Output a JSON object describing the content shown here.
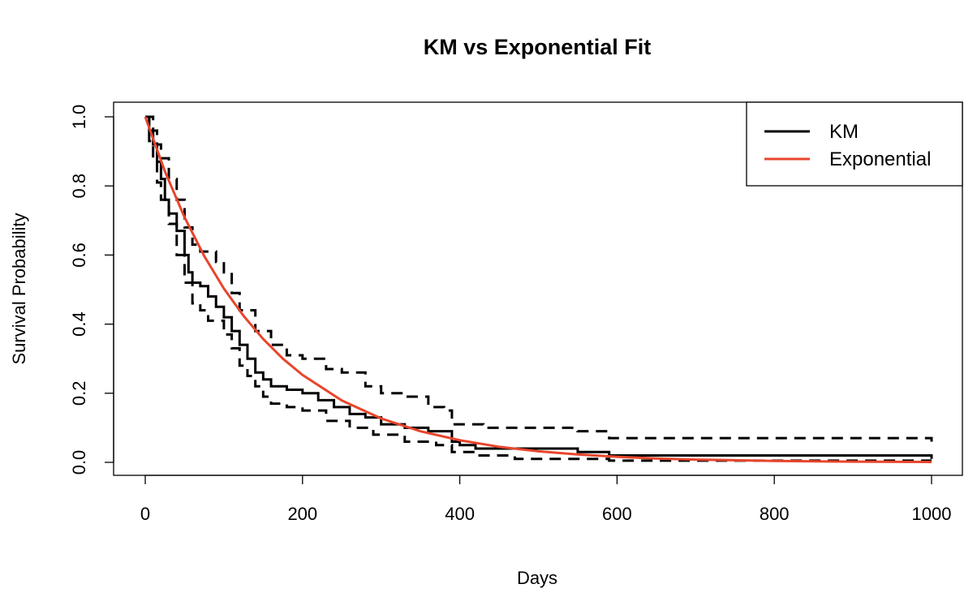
{
  "chart_data": {
    "type": "line",
    "title": "KM vs Exponential Fit",
    "xlabel": "Days",
    "ylabel": "Survival Probability",
    "xlim": [
      0,
      1000
    ],
    "ylim": [
      0,
      1
    ],
    "x_ticks": [
      0,
      200,
      400,
      600,
      800,
      1000
    ],
    "y_ticks": [
      "0.0",
      "0.2",
      "0.4",
      "0.6",
      "0.8",
      "1.0"
    ],
    "grid": false,
    "legend": {
      "position": "top-right",
      "entries": [
        {
          "label": "KM",
          "color": "#000000"
        },
        {
          "label": "Exponential",
          "color": "#e8452c"
        }
      ]
    },
    "series": [
      {
        "name": "KM",
        "role": "estimate",
        "color": "#000000",
        "style": "step-solid",
        "x": [
          0,
          5,
          10,
          15,
          20,
          25,
          30,
          40,
          50,
          55,
          60,
          70,
          80,
          90,
          100,
          110,
          120,
          130,
          140,
          150,
          160,
          180,
          200,
          220,
          240,
          260,
          280,
          300,
          330,
          360,
          390,
          400,
          420,
          460,
          550,
          590,
          700,
          990,
          1000
        ],
        "y": [
          1.0,
          0.96,
          0.92,
          0.87,
          0.82,
          0.76,
          0.72,
          0.67,
          0.6,
          0.55,
          0.52,
          0.51,
          0.48,
          0.45,
          0.42,
          0.38,
          0.34,
          0.3,
          0.26,
          0.24,
          0.22,
          0.21,
          0.2,
          0.18,
          0.16,
          0.14,
          0.13,
          0.11,
          0.1,
          0.09,
          0.06,
          0.05,
          0.04,
          0.04,
          0.03,
          0.02,
          0.02,
          0.02,
          0.01
        ]
      },
      {
        "name": "KM upper CI",
        "role": "upper confidence band",
        "color": "#000000",
        "style": "step-dashed",
        "x": [
          0,
          5,
          10,
          15,
          20,
          30,
          40,
          50,
          60,
          70,
          90,
          100,
          110,
          120,
          140,
          160,
          180,
          200,
          230,
          250,
          280,
          300,
          330,
          360,
          380,
          390,
          400,
          430,
          550,
          590,
          700,
          990,
          1000
        ],
        "y": [
          1.0,
          1.0,
          0.96,
          0.92,
          0.88,
          0.82,
          0.76,
          0.68,
          0.63,
          0.61,
          0.58,
          0.55,
          0.49,
          0.44,
          0.38,
          0.34,
          0.31,
          0.3,
          0.27,
          0.26,
          0.22,
          0.2,
          0.19,
          0.16,
          0.15,
          0.11,
          0.11,
          0.1,
          0.09,
          0.07,
          0.07,
          0.07,
          0.06
        ]
      },
      {
        "name": "KM lower CI",
        "role": "lower confidence band",
        "color": "#000000",
        "style": "step-dashed",
        "x": [
          0,
          5,
          10,
          15,
          20,
          30,
          40,
          50,
          60,
          70,
          80,
          100,
          110,
          120,
          130,
          140,
          150,
          160,
          180,
          200,
          230,
          260,
          290,
          330,
          370,
          390,
          420,
          470,
          590,
          700,
          1000
        ],
        "y": [
          1.0,
          0.93,
          0.87,
          0.81,
          0.76,
          0.69,
          0.6,
          0.52,
          0.46,
          0.44,
          0.41,
          0.37,
          0.33,
          0.28,
          0.25,
          0.22,
          0.19,
          0.17,
          0.16,
          0.15,
          0.12,
          0.1,
          0.08,
          0.06,
          0.05,
          0.03,
          0.02,
          0.01,
          0.005,
          0.005,
          0.005
        ]
      },
      {
        "name": "Exponential",
        "role": "fitted curve",
        "color": "#e8452c",
        "style": "smooth",
        "x": [
          0,
          25,
          50,
          75,
          100,
          125,
          150,
          175,
          200,
          250,
          300,
          350,
          400,
          450,
          500,
          550,
          600,
          650,
          700,
          800,
          900,
          1000
        ],
        "y": [
          1.0,
          0.842,
          0.709,
          0.597,
          0.503,
          0.424,
          0.357,
          0.3,
          0.253,
          0.179,
          0.127,
          0.09,
          0.064,
          0.045,
          0.032,
          0.023,
          0.016,
          0.011,
          0.008,
          0.004,
          0.002,
          0.001
        ]
      }
    ]
  }
}
